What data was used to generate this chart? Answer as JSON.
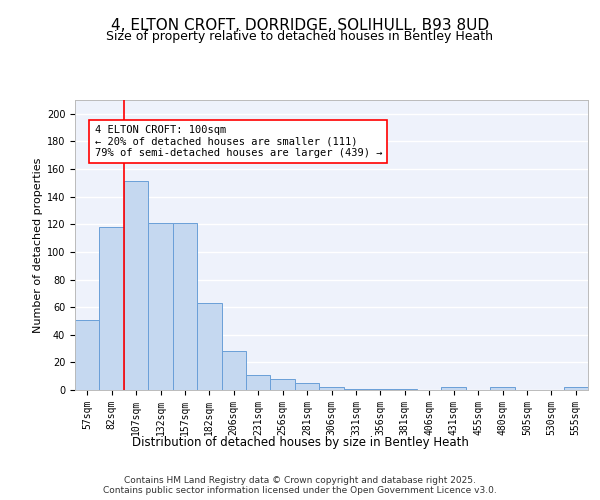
{
  "title1": "4, ELTON CROFT, DORRIDGE, SOLIHULL, B93 8UD",
  "title2": "Size of property relative to detached houses in Bentley Heath",
  "xlabel": "Distribution of detached houses by size in Bentley Heath",
  "ylabel": "Number of detached properties",
  "bar_labels": [
    "57sqm",
    "82sqm",
    "107sqm",
    "132sqm",
    "157sqm",
    "182sqm",
    "206sqm",
    "231sqm",
    "256sqm",
    "281sqm",
    "306sqm",
    "331sqm",
    "356sqm",
    "381sqm",
    "406sqm",
    "431sqm",
    "455sqm",
    "480sqm",
    "505sqm",
    "530sqm",
    "555sqm"
  ],
  "bar_values": [
    51,
    118,
    151,
    121,
    121,
    63,
    28,
    11,
    8,
    5,
    2,
    1,
    1,
    1,
    0,
    2,
    0,
    2,
    0,
    0,
    2
  ],
  "bar_color": "#c5d8f0",
  "bar_edge_color": "#6a9fd8",
  "background_color": "#eef2fb",
  "grid_color": "#ffffff",
  "annotation_text": "4 ELTON CROFT: 100sqm\n← 20% of detached houses are smaller (111)\n79% of semi-detached houses are larger (439) →",
  "redline_x": 1.5,
  "ylim": [
    0,
    210
  ],
  "yticks": [
    0,
    20,
    40,
    60,
    80,
    100,
    120,
    140,
    160,
    180,
    200
  ],
  "footer": "Contains HM Land Registry data © Crown copyright and database right 2025.\nContains public sector information licensed under the Open Government Licence v3.0.",
  "title1_fontsize": 11,
  "title2_fontsize": 9,
  "xlabel_fontsize": 8.5,
  "ylabel_fontsize": 8,
  "tick_fontsize": 7,
  "footer_fontsize": 6.5,
  "annot_fontsize": 7.5
}
